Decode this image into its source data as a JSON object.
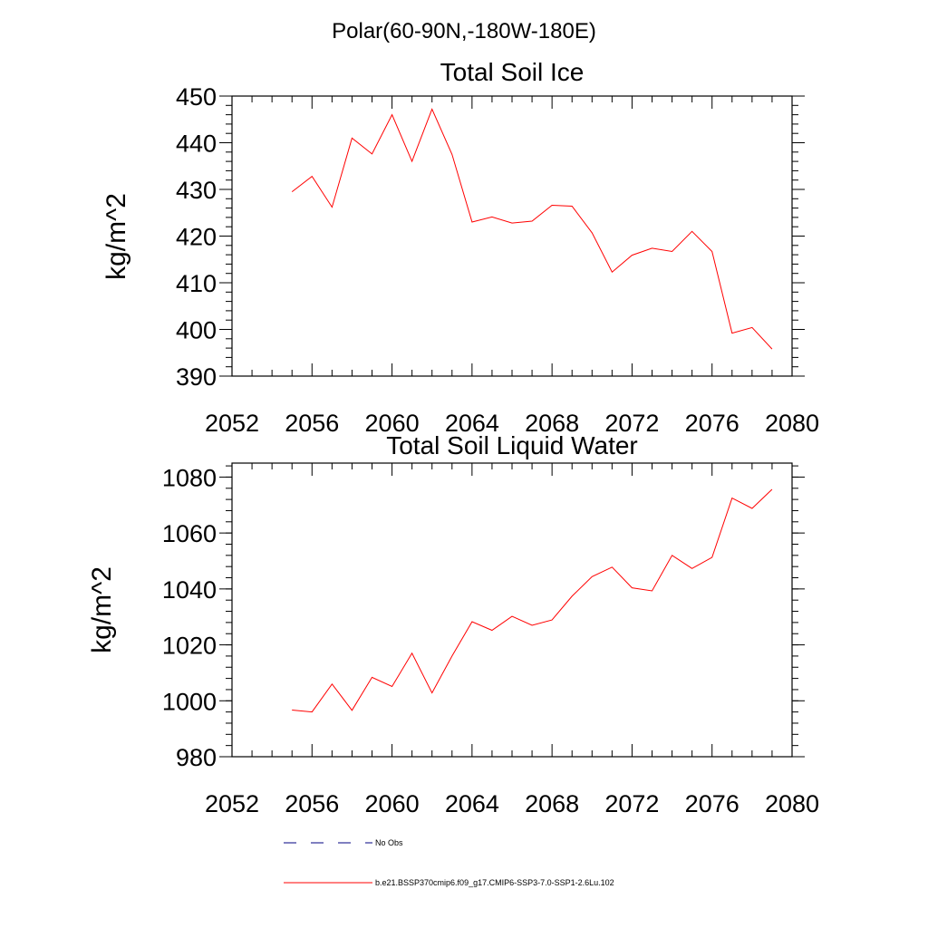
{
  "figure": {
    "title": "Polar(60-90N,-180W-180E)",
    "line_color": "#ff0000",
    "obs_color": "#000080"
  },
  "legend": {
    "entries": [
      {
        "label": "No Obs",
        "style": "dashed",
        "color": "#000080"
      },
      {
        "label": "b.e21.BSSP370cmip6.f09_g17.CMIP6-SSP3-7.0-SSP1-2.6Lu.102",
        "style": "solid",
        "color": "#ff0000"
      }
    ]
  },
  "chart_data": [
    {
      "type": "line",
      "title": "Total Soil Ice",
      "ylabel": "kg/m^2",
      "xlabel": "",
      "xlim": [
        2052,
        2080
      ],
      "ylim": [
        390,
        450
      ],
      "xticks": [
        2052,
        2056,
        2060,
        2064,
        2068,
        2072,
        2076,
        2080
      ],
      "yticks": [
        390,
        400,
        410,
        420,
        430,
        440,
        450
      ],
      "x": [
        2055,
        2056,
        2057,
        2058,
        2059,
        2060,
        2061,
        2062,
        2063,
        2064,
        2065,
        2066,
        2067,
        2068,
        2069,
        2070,
        2071,
        2072,
        2073,
        2074,
        2075,
        2076,
        2077,
        2078,
        2079
      ],
      "series": [
        {
          "name": "b.e21.BSSP370cmip6.f09_g17.CMIP6-SSP3-7.0-SSP1-2.6Lu.102",
          "values": [
            429.5,
            432.8,
            426.2,
            441.0,
            437.6,
            446.0,
            436.0,
            447.2,
            437.5,
            423.0,
            424.1,
            422.8,
            423.2,
            426.6,
            426.4,
            420.7,
            412.3,
            415.9,
            417.4,
            416.7,
            421.0,
            416.7,
            399.2,
            400.4,
            395.8
          ]
        }
      ]
    },
    {
      "type": "line",
      "title": "Total Soil Liquid Water",
      "ylabel": "kg/m^2",
      "xlabel": "",
      "xlim": [
        2052,
        2080
      ],
      "ylim": [
        980,
        1085
      ],
      "xticks": [
        2052,
        2056,
        2060,
        2064,
        2068,
        2072,
        2076,
        2080
      ],
      "yticks": [
        980,
        1000,
        1020,
        1040,
        1060,
        1080
      ],
      "x": [
        2055,
        2056,
        2057,
        2058,
        2059,
        2060,
        2061,
        2062,
        2063,
        2064,
        2065,
        2066,
        2067,
        2068,
        2069,
        2070,
        2071,
        2072,
        2073,
        2074,
        2075,
        2076,
        2077,
        2078,
        2079
      ],
      "series": [
        {
          "name": "b.e21.BSSP370cmip6.f09_g17.CMIP6-SSP3-7.0-SSP1-2.6Lu.102",
          "values": [
            996.7,
            996.0,
            1006.0,
            996.6,
            1008.4,
            1005.1,
            1017.0,
            1002.8,
            1016.0,
            1028.3,
            1025.2,
            1030.2,
            1027.0,
            1028.9,
            1037.4,
            1044.4,
            1047.8,
            1040.4,
            1039.3,
            1052.0,
            1047.3,
            1051.3,
            1072.5,
            1068.8,
            1075.6
          ]
        }
      ]
    }
  ]
}
